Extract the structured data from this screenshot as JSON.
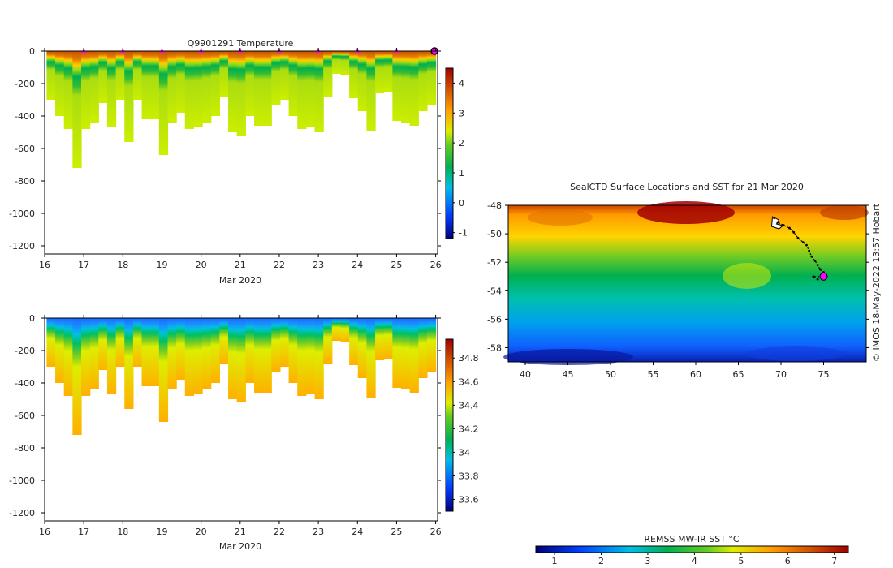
{
  "chart_data": [
    {
      "id": "temperature",
      "type": "heatmap",
      "title": "Q9901291  Temperature",
      "xlabel": "Mar 2020",
      "ylabel": "",
      "xlim": [
        16,
        26.05
      ],
      "ylim": [
        -1250,
        0
      ],
      "xticks": [
        16,
        17,
        18,
        19,
        20,
        21,
        22,
        23,
        24,
        25,
        26
      ],
      "yticks": [
        0,
        -200,
        -400,
        -600,
        -800,
        -1000,
        -1200
      ],
      "colorbar": {
        "min": -1.2,
        "max": 4.5,
        "ticks": [
          4,
          3,
          2,
          1,
          0,
          -1
        ]
      },
      "marker_days": [
        17,
        18,
        19,
        20,
        21,
        22,
        23,
        24,
        25
      ]
    },
    {
      "id": "salinity",
      "type": "heatmap",
      "title": "",
      "xlabel": "Mar 2020",
      "ylabel": "",
      "xlim": [
        16,
        26.05
      ],
      "ylim": [
        -1250,
        0
      ],
      "xticks": [
        16,
        17,
        18,
        19,
        20,
        21,
        22,
        23,
        24,
        25,
        26
      ],
      "yticks": [
        0,
        -200,
        -400,
        -600,
        -800,
        -1000,
        -1200
      ],
      "colorbar": {
        "min": 33.5,
        "max": 34.96,
        "ticks": [
          34.8,
          34.6,
          34.4,
          34.2,
          34,
          33.8,
          33.6
        ]
      }
    },
    {
      "id": "sst_map",
      "type": "heatmap",
      "title": "SealCTD Surface Locations and SST for 21 Mar 2020",
      "xlabel": "",
      "ylabel": "",
      "xlim": [
        38,
        80
      ],
      "ylim": [
        -59,
        -48
      ],
      "xticks": [
        40,
        45,
        50,
        55,
        60,
        65,
        70,
        75
      ],
      "yticks": [
        -48,
        -50,
        -52,
        -54,
        -56,
        -58
      ],
      "colorbar": {
        "label": "REMSS MW-IR SST °C",
        "min": 0.6,
        "max": 7.3,
        "ticks": [
          1,
          2,
          3,
          4,
          5,
          6,
          7
        ]
      },
      "track": [
        [
          69.2,
          -48.9
        ],
        [
          69.6,
          -49.2
        ],
        [
          70.3,
          -49.4
        ],
        [
          71.0,
          -49.6
        ],
        [
          71.5,
          -49.9
        ],
        [
          72.0,
          -50.3
        ],
        [
          72.6,
          -50.6
        ],
        [
          73.0,
          -50.8
        ],
        [
          73.3,
          -51.2
        ],
        [
          73.6,
          -51.6
        ],
        [
          74.0,
          -51.9
        ],
        [
          74.3,
          -52.2
        ],
        [
          74.6,
          -52.5
        ],
        [
          75.0,
          -52.7
        ],
        [
          74.8,
          -53.0
        ],
        [
          74.3,
          -53.2
        ],
        [
          73.8,
          -53.0
        ],
        [
          75.0,
          -53.0
        ]
      ],
      "last_position": [
        75.0,
        -53.0
      ],
      "watermark": "© IMOS 18-May-2022 13:57 Hobart"
    }
  ]
}
